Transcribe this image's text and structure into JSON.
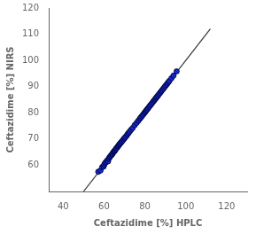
{
  "chart_data": {
    "type": "scatter",
    "xlabel": "Ceftazidime [%] HPLC",
    "ylabel": "Ceftazidime [%] NIRS",
    "xlim": [
      33,
      130
    ],
    "ylim": [
      50,
      120
    ],
    "xticks": [
      40,
      60,
      80,
      100,
      120
    ],
    "yticks": [
      60,
      70,
      80,
      90,
      100,
      110,
      120
    ],
    "grid": false,
    "series": [
      {
        "type": "line",
        "color": "#333333",
        "x": [
          50,
          112
        ],
        "values": [
          50,
          112
        ]
      },
      {
        "type": "scatter",
        "color": "#1428C8",
        "x": [
          57.2,
          58.3,
          59.1,
          59.8,
          60.1,
          60.5,
          61.0,
          61.5,
          62.0,
          62.3,
          62.7,
          63.0,
          63.4,
          63.8,
          64.1,
          64.4,
          64.8,
          65.0,
          65.2,
          65.5,
          65.8,
          66.1,
          66.5,
          66.8,
          67.1,
          67.4,
          67.7,
          68.0,
          68.4,
          68.8,
          69.2,
          69.6,
          70.0,
          70.4,
          71.0,
          71.5,
          72.0,
          72.5,
          73.2,
          74.0,
          75.0,
          76.0,
          76.8,
          77.5,
          78.0,
          78.5,
          79.0,
          79.5,
          80.0,
          80.3,
          80.7,
          81.1,
          81.5,
          82.0,
          82.5,
          83.0,
          83.5,
          84.0,
          84.5,
          84.9,
          85.3,
          85.7,
          86.1,
          86.5,
          87.0,
          87.5,
          88.0,
          88.5,
          89.0,
          89.5,
          90.0,
          90.5,
          91.0,
          91.5,
          92.0,
          93.0,
          94.0,
          95.5
        ],
        "values": [
          57.5,
          58.0,
          59.3,
          59.5,
          60.2,
          60.8,
          61.2,
          61.8,
          61.5,
          62.5,
          63.0,
          63.3,
          63.7,
          64.0,
          64.3,
          64.8,
          65.1,
          65.3,
          65.5,
          65.8,
          66.2,
          66.5,
          66.8,
          67.2,
          67.5,
          67.8,
          68.1,
          68.4,
          68.8,
          69.1,
          69.5,
          69.9,
          70.3,
          70.7,
          71.2,
          71.8,
          72.3,
          72.8,
          73.5,
          74.2,
          75.3,
          76.2,
          77.0,
          77.7,
          78.2,
          78.7,
          79.2,
          79.7,
          80.2,
          80.5,
          80.9,
          81.3,
          81.7,
          82.2,
          82.7,
          83.2,
          83.7,
          84.2,
          84.7,
          85.1,
          85.5,
          85.9,
          86.3,
          86.7,
          87.2,
          87.7,
          88.2,
          88.7,
          89.2,
          89.7,
          90.2,
          90.7,
          91.2,
          91.7,
          92.2,
          93.2,
          94.2,
          95.8
        ]
      }
    ]
  }
}
